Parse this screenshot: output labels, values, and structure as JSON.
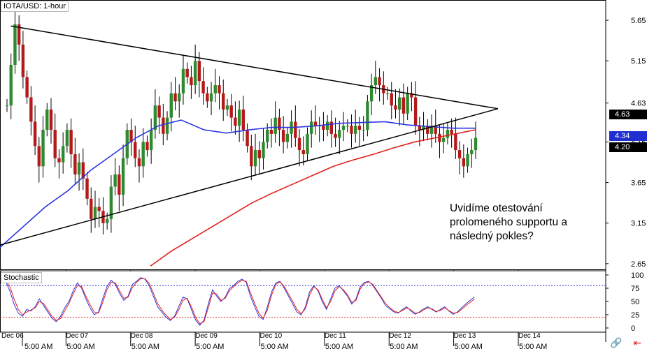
{
  "chart_data": [
    {
      "type": "candlestick",
      "title": "IOTA/USD: 1-hour",
      "y_ticks": [
        5.65,
        5.15,
        4.63,
        4.15,
        3.65,
        3.15,
        2.65
      ],
      "ylim": [
        2.58,
        5.9
      ],
      "x_ticks": [
        {
          "day": "Dec 06",
          "time": "5:00 AM"
        },
        {
          "day": "Dec 07",
          "time": "5:00 AM"
        },
        {
          "day": "Dec 08",
          "time": "5:00 AM"
        },
        {
          "day": "Dec 09",
          "time": "5:00 AM"
        },
        {
          "day": "Dec 10",
          "time": "5:00 AM"
        },
        {
          "day": "Dec 11",
          "time": "5:00 AM"
        },
        {
          "day": "Dec 12",
          "time": "5:00 AM"
        },
        {
          "day": "Dec 13",
          "time": "5:00 AM"
        },
        {
          "day": "Dec 14",
          "time": "5:00 AM"
        }
      ],
      "price_tags": [
        {
          "label": "4.63",
          "color": "#000000"
        },
        {
          "label": "4.34",
          "color": "#1f2fd0"
        },
        {
          "label": "4.20",
          "color": "#000000"
        }
      ],
      "close_series": [
        4.6,
        5.1,
        5.6,
        5.35,
        4.95,
        4.7,
        4.4,
        4.1,
        3.85,
        4.3,
        4.55,
        4.3,
        3.95,
        3.9,
        4.1,
        4.3,
        4.0,
        3.75,
        3.9,
        3.7,
        3.45,
        3.2,
        3.35,
        3.3,
        3.15,
        3.2,
        3.6,
        3.75,
        3.5,
        3.95,
        4.3,
        4.15,
        3.95,
        3.85,
        4.15,
        4.05,
        4.3,
        4.6,
        4.45,
        4.25,
        4.45,
        4.75,
        4.65,
        4.75,
        5.05,
        4.95,
        4.85,
        5.15,
        4.9,
        4.75,
        4.65,
        4.75,
        4.85,
        4.75,
        4.55,
        4.6,
        4.45,
        4.35,
        4.55,
        4.3,
        4.1,
        3.85,
        4.05,
        3.95,
        4.15,
        4.3,
        4.25,
        4.45,
        4.3,
        4.15,
        4.25,
        4.4,
        4.2,
        4.05,
        4.0,
        4.25,
        4.4,
        4.35,
        4.35,
        4.3,
        4.4,
        4.25,
        4.2,
        4.3,
        4.35,
        4.35,
        4.25,
        4.35,
        4.3,
        4.3,
        4.65,
        4.85,
        4.95,
        4.85,
        4.75,
        4.75,
        4.6,
        4.55,
        4.7,
        4.5,
        4.75,
        4.7,
        4.35,
        4.3,
        4.35,
        4.25,
        4.35,
        4.25,
        4.15,
        4.2,
        4.3,
        4.25,
        4.05,
        3.95,
        3.85,
        4.0,
        4.05,
        4.2
      ],
      "series": [
        {
          "name": "",
          "color": "#2b34e0",
          "values": [
            2.85,
            3.1,
            3.35,
            3.55,
            3.8,
            4.0,
            4.2,
            4.35,
            4.42,
            4.3,
            4.26,
            4.3,
            4.33,
            4.33,
            4.35,
            4.38,
            4.39,
            4.4,
            4.36,
            4.34,
            4.32,
            4.32
          ]
        },
        {
          "name": "",
          "color": "#e3211c",
          "values": [
            2.62,
            2.8,
            2.95,
            3.1,
            3.25,
            3.4,
            3.52,
            3.63,
            3.74,
            3.85,
            3.93,
            4.0,
            4.08,
            4.15,
            4.2,
            4.25,
            4.3
          ]
        }
      ],
      "trendlines": [
        {
          "name": "resistance",
          "from": [
            0.018,
            5.58
          ],
          "to": [
            0.822,
            4.56
          ],
          "color": "#000000"
        },
        {
          "name": "support",
          "from": [
            0.0,
            2.88
          ],
          "to": [
            0.822,
            4.56
          ],
          "color": "#000000"
        }
      ],
      "annotation": [
        "Uvidíme otestování",
        "prolomeného supportu a",
        "následný pokles?"
      ]
    },
    {
      "type": "line",
      "title": "Stochastic",
      "y_ticks": [
        100,
        75,
        50,
        25,
        0
      ],
      "ylim": [
        0,
        100
      ],
      "levels": [
        80,
        20
      ],
      "series": [
        {
          "name": "",
          "color": "#2b34e0",
          "values": [
            95,
            88,
            70,
            45,
            28,
            22,
            35,
            32,
            40,
            55,
            42,
            30,
            18,
            12,
            22,
            38,
            50,
            70,
            85,
            75,
            55,
            38,
            25,
            30,
            55,
            78,
            90,
            82,
            65,
            52,
            60,
            82,
            88,
            95,
            92,
            80,
            60,
            40,
            30,
            20,
            14,
            22,
            40,
            58,
            55,
            35,
            15,
            5,
            15,
            45,
            72,
            60,
            50,
            58,
            74,
            80,
            88,
            92,
            86,
            60,
            40,
            22,
            16,
            40,
            68,
            85,
            88,
            75,
            60,
            45,
            30,
            25,
            40,
            68,
            80,
            70,
            50,
            35,
            55,
            75,
            80,
            70,
            60,
            45,
            55,
            78,
            86,
            88,
            80,
            68,
            56,
            42,
            36,
            30,
            28,
            35,
            40,
            32,
            26,
            30,
            36,
            40,
            35,
            30,
            35,
            40,
            32,
            26,
            30,
            38,
            45,
            52,
            58
          ]
        },
        {
          "name": "",
          "color": "#e3211c",
          "values": [
            92,
            90,
            78,
            55,
            35,
            25,
            30,
            34,
            38,
            50,
            46,
            34,
            22,
            14,
            18,
            32,
            46,
            64,
            80,
            78,
            60,
            44,
            30,
            28,
            48,
            72,
            86,
            85,
            70,
            56,
            58,
            76,
            86,
            93,
            93,
            84,
            66,
            46,
            34,
            24,
            16,
            20,
            34,
            52,
            56,
            40,
            20,
            8,
            12,
            38,
            66,
            64,
            52,
            56,
            70,
            78,
            85,
            90,
            88,
            66,
            46,
            28,
            18,
            34,
            62,
            82,
            87,
            78,
            64,
            50,
            35,
            27,
            36,
            62,
            78,
            72,
            54,
            38,
            50,
            70,
            78,
            72,
            62,
            48,
            52,
            74,
            84,
            87,
            82,
            70,
            58,
            46,
            38,
            32,
            29,
            33,
            38,
            34,
            28,
            29,
            34,
            38,
            36,
            31,
            33,
            38,
            33,
            28,
            29,
            35,
            42,
            48,
            54
          ]
        }
      ]
    }
  ],
  "ui": {
    "footer_link_icon": "link-icon",
    "footer_close_icon": "close-arrow-icon"
  }
}
